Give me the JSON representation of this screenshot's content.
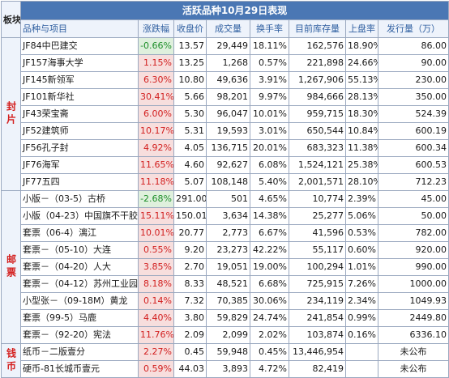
{
  "table": {
    "board_header": "板块",
    "title": "活跃品种10月29日表现",
    "columns": [
      "品种与项目",
      "涨跌幅",
      "收盘价",
      "成交量",
      "换手率",
      "目前库存量",
      "上盘率",
      "发行量（万）"
    ],
    "sections": [
      {
        "label": "封片",
        "rows": [
          {
            "name": "JF84中巴建交",
            "change": "-0.66%",
            "close": "13.57",
            "volume": "29,449",
            "turnover": "18.11%",
            "inventory": "162,576",
            "listing": "18.90%",
            "issue": "86.00",
            "dir": "down"
          },
          {
            "name": "JF157海事大学",
            "change": "1.15%",
            "close": "13.25",
            "volume": "1,268",
            "turnover": "0.57%",
            "inventory": "221,898",
            "listing": "24.66%",
            "issue": "90.00",
            "dir": "up"
          },
          {
            "name": "JF145新领军",
            "change": "6.30%",
            "close": "10.80",
            "volume": "49,636",
            "turnover": "3.91%",
            "inventory": "1,267,906",
            "listing": "55.13%",
            "issue": "230.00",
            "dir": "up"
          },
          {
            "name": "JF101新华社",
            "change": "30.41%",
            "close": "5.66",
            "volume": "98,201",
            "turnover": "9.97%",
            "inventory": "984,666",
            "listing": "28.13%",
            "issue": "350.00",
            "dir": "up"
          },
          {
            "name": "JF43荣宝斋",
            "change": "6.00%",
            "close": "5.30",
            "volume": "96,047",
            "turnover": "10.01%",
            "inventory": "959,715",
            "listing": "18.30%",
            "issue": "524.39",
            "dir": "up"
          },
          {
            "name": "JF52建筑师",
            "change": "10.17%",
            "close": "5.31",
            "volume": "19,593",
            "turnover": "3.01%",
            "inventory": "650,544",
            "listing": "10.84%",
            "issue": "600.19",
            "dir": "up"
          },
          {
            "name": "JF56孔子封",
            "change": "4.92%",
            "close": "4.05",
            "volume": "136,715",
            "turnover": "20.01%",
            "inventory": "683,323",
            "listing": "11.38%",
            "issue": "600.34",
            "dir": "up"
          },
          {
            "name": "JF76海军",
            "change": "11.65%",
            "close": "4.60",
            "volume": "92,627",
            "turnover": "6.08%",
            "inventory": "1,524,121",
            "listing": "25.38%",
            "issue": "600.53",
            "dir": "up"
          },
          {
            "name": "JF77五四",
            "change": "11.18%",
            "close": "5.07",
            "volume": "108,148",
            "turnover": "5.40%",
            "inventory": "2,001,571",
            "listing": "28.10%",
            "issue": "712.23",
            "dir": "up"
          }
        ]
      },
      {
        "label": "邮票",
        "rows": [
          {
            "name": "小版－（03-5）古桥",
            "change": "-2.68%",
            "close": "291.00",
            "volume": "501",
            "turnover": "4.65%",
            "inventory": "10,774",
            "listing": "2.39%",
            "issue": "45.00",
            "dir": "down"
          },
          {
            "name": "小版（04-23）中国旗不干胶",
            "change": "15.11%",
            "close": "150.01",
            "volume": "3,634",
            "turnover": "14.38%",
            "inventory": "25,277",
            "listing": "5.06%",
            "issue": "50.00",
            "dir": "up"
          },
          {
            "name": "套票（06-4）漓江",
            "change": "10.01%",
            "close": "20.77",
            "volume": "2,773",
            "turnover": "6.67%",
            "inventory": "41,596",
            "listing": "0.53%",
            "issue": "782.00",
            "dir": "up"
          },
          {
            "name": "套票－（05-10）大连",
            "change": "0.55%",
            "close": "9.20",
            "volume": "23,273",
            "turnover": "42.22%",
            "inventory": "55,117",
            "listing": "0.60%",
            "issue": "920.00",
            "dir": "up"
          },
          {
            "name": "套票－（04-20）人大",
            "change": "3.85%",
            "close": "2.70",
            "volume": "19,051",
            "turnover": "19.00%",
            "inventory": "100,294",
            "listing": "1.01%",
            "issue": "990.00",
            "dir": "up"
          },
          {
            "name": "套票－（04-12）苏州工业园",
            "change": "8.18%",
            "close": "8.33",
            "volume": "48,521",
            "turnover": "6.68%",
            "inventory": "725,915",
            "listing": "7.26%",
            "issue": "1000.00",
            "dir": "up"
          },
          {
            "name": "小型张－（09-18M）黄龙",
            "change": "0.14%",
            "close": "7.32",
            "volume": "70,385",
            "turnover": "30.06%",
            "inventory": "234,119",
            "listing": "2.34%",
            "issue": "1049.93",
            "dir": "up"
          },
          {
            "name": "套票（99-5）马鹿",
            "change": "4.40%",
            "close": "3.80",
            "volume": "59,829",
            "turnover": "24.74%",
            "inventory": "241,854",
            "listing": "0.99%",
            "issue": "2449.80",
            "dir": "up"
          },
          {
            "name": "套票－（92-20）宪法",
            "change": "11.76%",
            "close": "2.09",
            "volume": "2,099",
            "turnover": "2.02%",
            "inventory": "103,874",
            "listing": "0.16%",
            "issue": "6336.10",
            "dir": "up"
          }
        ]
      },
      {
        "label": "钱币",
        "rows": [
          {
            "name": "纸币－二版壹分",
            "change": "2.27%",
            "close": "0.45",
            "volume": "59,948",
            "turnover": "0.45%",
            "inventory": "13,446,954",
            "listing": "",
            "issue": "未公布",
            "dir": "up"
          },
          {
            "name": "硬币-81长城币壹元",
            "change": "0.59%",
            "close": "44.03",
            "volume": "3,893",
            "turnover": "4.72%",
            "inventory": "82,419",
            "listing": "",
            "issue": "未公布",
            "dir": "up"
          }
        ]
      }
    ]
  }
}
